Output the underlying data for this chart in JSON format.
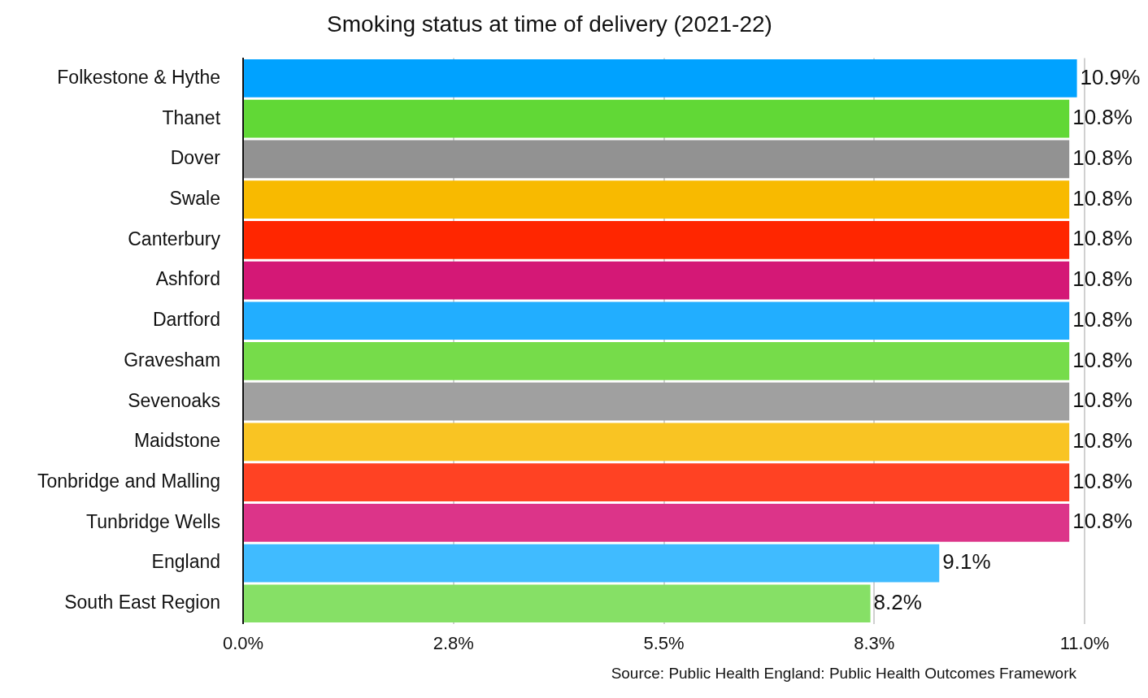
{
  "chart_data": {
    "type": "bar",
    "orientation": "horizontal",
    "title": "Smoking status at time of delivery (2021-22)",
    "categories": [
      "Folkestone & Hythe",
      "Thanet",
      "Dover",
      "Swale",
      "Canterbury",
      "Ashford",
      "Dartford",
      "Gravesham",
      "Sevenoaks",
      "Maidstone",
      "Tonbridge and Malling",
      "Tunbridge Wells",
      "England",
      "South East Region"
    ],
    "values": [
      10.9,
      10.8,
      10.8,
      10.8,
      10.8,
      10.8,
      10.8,
      10.8,
      10.8,
      10.8,
      10.8,
      10.8,
      9.1,
      8.2
    ],
    "value_labels": [
      "10.9%",
      "10.8%",
      "10.8%",
      "10.8%",
      "10.8%",
      "10.8%",
      "10.8%",
      "10.8%",
      "10.8%",
      "10.8%",
      "10.8%",
      "10.8%",
      "9.1%",
      "8.2%"
    ],
    "colors": [
      "#00a2ff",
      "#61d836",
      "#929292",
      "#f8ba00",
      "#ff2600",
      "#d41876",
      "#22aeff",
      "#76dc4a",
      "#a0a0a0",
      "#f9c423",
      "#ff4223",
      "#dc3489",
      "#40bbff",
      "#86e066"
    ],
    "xlim": [
      0,
      11
    ],
    "xticks": [
      {
        "value": 0,
        "label": "0.0%"
      },
      {
        "value": 2.75,
        "label": "2.8%"
      },
      {
        "value": 5.5,
        "label": "5.5%"
      },
      {
        "value": 8.25,
        "label": "8.3%"
      },
      {
        "value": 11,
        "label": "11.0%"
      }
    ],
    "grid": "x",
    "legend": false,
    "annotations": [
      "Source: Public Health England: Public Health Outcomes Framework"
    ]
  }
}
